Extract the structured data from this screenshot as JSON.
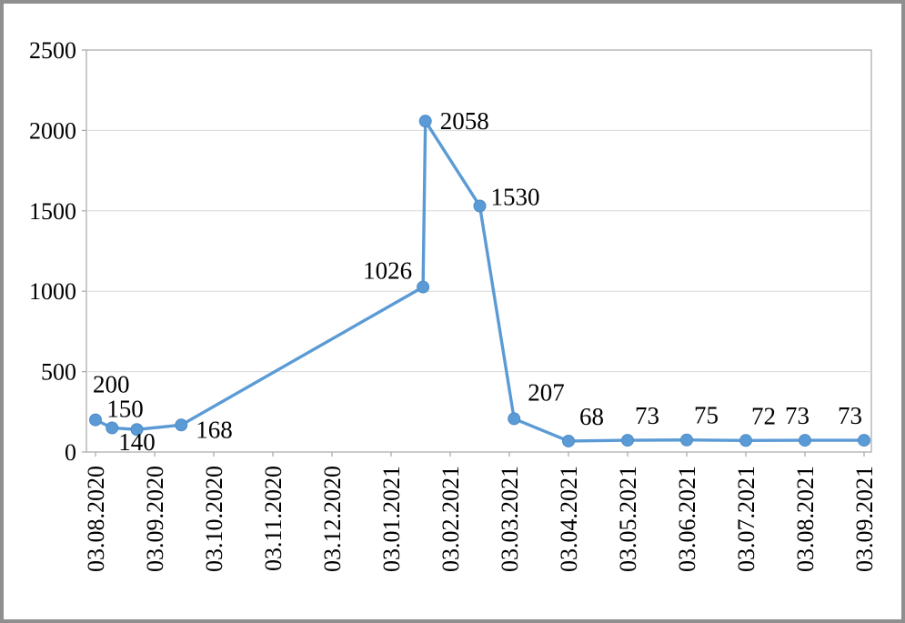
{
  "figure": {
    "background": "#ffffff",
    "border_color": "#8f8f8f",
    "plot_border_color": "#a6a6a6",
    "gridline_color": "#d9d9d9"
  },
  "chart_data": {
    "type": "line",
    "title": "",
    "xlabel": "",
    "ylabel": "",
    "x_tick_labels": [
      "03.08.2020",
      "03.09.2020",
      "03.10.2020",
      "03.11.2020",
      "03.12.2020",
      "03.01.2021",
      "03.02.2021",
      "03.03.2021",
      "03.04.2021",
      "03.05.2021",
      "03.06.2021",
      "03.07.2021",
      "03.08.2021",
      "03.09.2021"
    ],
    "y_ticks": [
      0,
      500,
      1000,
      1500,
      2000,
      2500
    ],
    "ylim": [
      0,
      2500
    ],
    "grid": true,
    "legend": false,
    "line_color": "#5b9bd5",
    "marker_edge_color": "#4e8cc9",
    "series": [
      {
        "name": "series-1",
        "points": [
          {
            "x": 0.0,
            "value": 200,
            "label": "200"
          },
          {
            "x": 0.28,
            "value": 150,
            "label": "150"
          },
          {
            "x": 0.7,
            "value": 140,
            "label": "140"
          },
          {
            "x": 1.45,
            "value": 168,
            "label": "168"
          },
          {
            "x": 5.54,
            "value": 1026,
            "label": "1026"
          },
          {
            "x": 5.58,
            "value": 2058,
            "label": "2058"
          },
          {
            "x": 6.5,
            "value": 1530,
            "label": "1530"
          },
          {
            "x": 7.08,
            "value": 207,
            "label": "207"
          },
          {
            "x": 8.0,
            "value": 68,
            "label": "68"
          },
          {
            "x": 9.0,
            "value": 73,
            "label": "73"
          },
          {
            "x": 10.0,
            "value": 75,
            "label": "75"
          },
          {
            "x": 11.0,
            "value": 72,
            "label": "72"
          },
          {
            "x": 12.0,
            "value": 73,
            "label": "73"
          },
          {
            "x": 13.0,
            "value": 73,
            "label": "73"
          }
        ]
      }
    ]
  }
}
